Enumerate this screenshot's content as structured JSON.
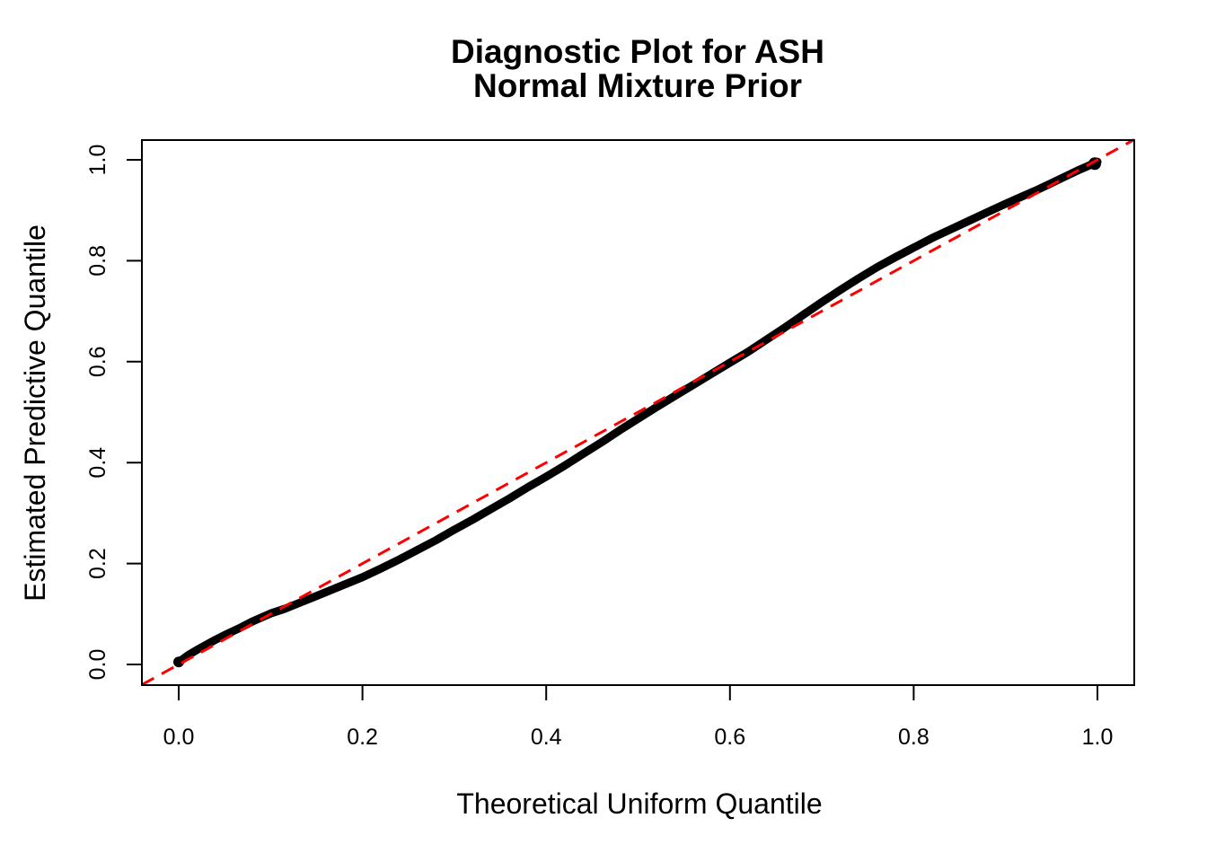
{
  "figure": {
    "background": "#FFFFFF",
    "title_line1": "Diagnostic Plot for ASH",
    "title_line2": "Normal Mixture Prior"
  },
  "chart_data": {
    "type": "scatter",
    "title": "Diagnostic Plot for ASH\nNormal Mixture Prior",
    "xlabel": "Theoretical Uniform Quantile",
    "ylabel": "Estimated Predictive Quantile",
    "xlim": [
      -0.04,
      1.04
    ],
    "ylim": [
      -0.04,
      1.04
    ],
    "grid": "off",
    "legend": "none",
    "x_ticks": [
      0.0,
      0.2,
      0.4,
      0.6,
      0.8,
      1.0
    ],
    "x_tick_labels": [
      "0.0",
      "0.2",
      "0.4",
      "0.6",
      "0.8",
      "1.0"
    ],
    "y_ticks": [
      0.0,
      0.2,
      0.4,
      0.6,
      0.8,
      1.0
    ],
    "y_tick_labels": [
      "0.0",
      "0.2",
      "0.4",
      "0.6",
      "0.8",
      "1.0"
    ],
    "colors": {
      "curve": "#000000",
      "reference_line": "#FF0000",
      "axis": "#000000"
    },
    "series": [
      {
        "name": "estimated-predictive-quantiles",
        "style": "thick-point-curve",
        "color": "#000000",
        "points": [
          [
            0.0,
            0.005
          ],
          [
            0.004,
            0.01
          ],
          [
            0.01,
            0.018
          ],
          [
            0.02,
            0.029
          ],
          [
            0.03,
            0.039
          ],
          [
            0.04,
            0.049
          ],
          [
            0.052,
            0.06
          ],
          [
            0.065,
            0.071
          ],
          [
            0.08,
            0.085
          ],
          [
            0.1,
            0.101
          ],
          [
            0.115,
            0.11
          ],
          [
            0.13,
            0.121
          ],
          [
            0.145,
            0.132
          ],
          [
            0.16,
            0.143
          ],
          [
            0.18,
            0.158
          ],
          [
            0.2,
            0.173
          ],
          [
            0.22,
            0.19
          ],
          [
            0.24,
            0.208
          ],
          [
            0.26,
            0.227
          ],
          [
            0.28,
            0.246
          ],
          [
            0.3,
            0.267
          ],
          [
            0.32,
            0.287
          ],
          [
            0.34,
            0.308
          ],
          [
            0.36,
            0.329
          ],
          [
            0.38,
            0.351
          ],
          [
            0.4,
            0.372
          ],
          [
            0.42,
            0.394
          ],
          [
            0.44,
            0.417
          ],
          [
            0.46,
            0.44
          ],
          [
            0.48,
            0.464
          ],
          [
            0.5,
            0.487
          ],
          [
            0.52,
            0.51
          ],
          [
            0.54,
            0.532
          ],
          [
            0.56,
            0.554
          ],
          [
            0.58,
            0.576
          ],
          [
            0.6,
            0.598
          ],
          [
            0.62,
            0.62
          ],
          [
            0.64,
            0.644
          ],
          [
            0.66,
            0.668
          ],
          [
            0.68,
            0.693
          ],
          [
            0.7,
            0.718
          ],
          [
            0.72,
            0.742
          ],
          [
            0.74,
            0.765
          ],
          [
            0.76,
            0.787
          ],
          [
            0.78,
            0.807
          ],
          [
            0.8,
            0.826
          ],
          [
            0.82,
            0.845
          ],
          [
            0.84,
            0.862
          ],
          [
            0.86,
            0.879
          ],
          [
            0.88,
            0.896
          ],
          [
            0.9,
            0.913
          ],
          [
            0.92,
            0.929
          ],
          [
            0.935,
            0.941
          ],
          [
            0.95,
            0.954
          ],
          [
            0.965,
            0.967
          ],
          [
            0.98,
            0.98
          ],
          [
            0.99,
            0.988
          ],
          [
            1.0,
            0.996
          ]
        ]
      },
      {
        "name": "reference-diagonal",
        "style": "dashed-line",
        "color": "#FF0000",
        "points": [
          [
            -0.04,
            -0.04
          ],
          [
            1.04,
            1.04
          ]
        ]
      }
    ]
  }
}
